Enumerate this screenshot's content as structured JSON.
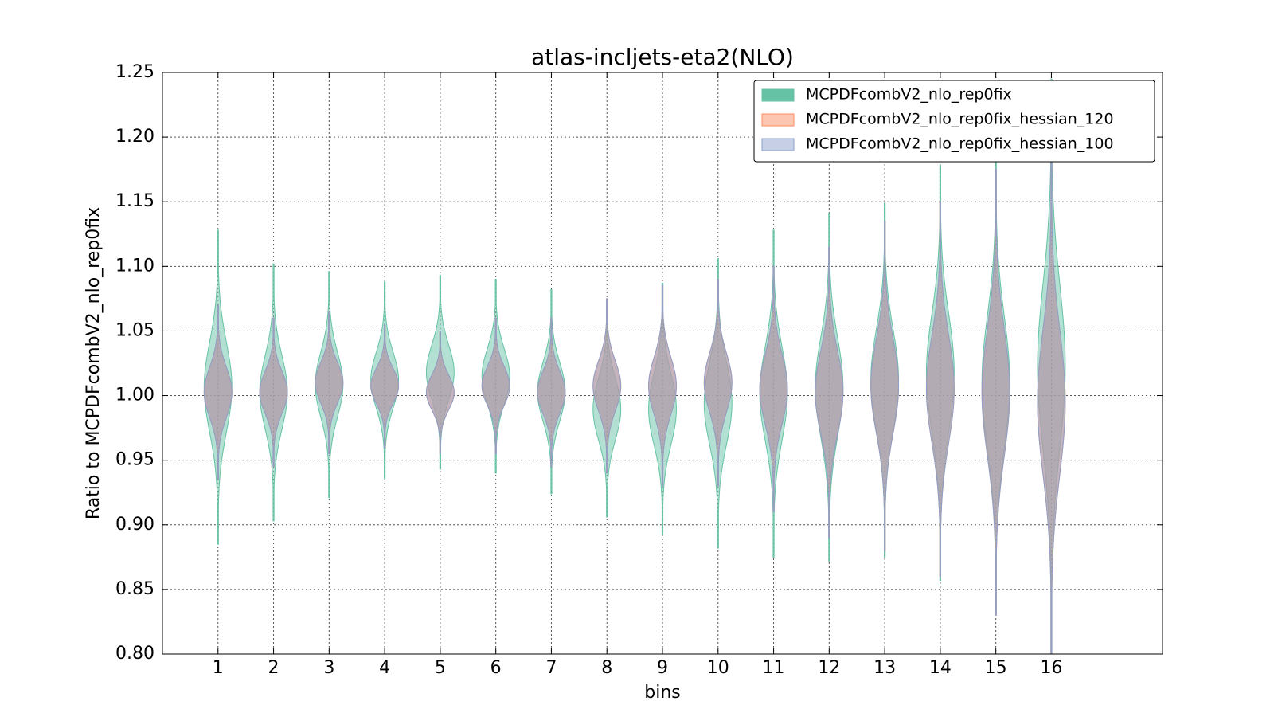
{
  "chart_data": {
    "type": "violin",
    "title": "atlas-incljets-eta2(NLO)",
    "x_label": "bins",
    "y_label": "Ratio to MCPDFcombV2_nlo_rep0fix",
    "categories": [
      "1",
      "2",
      "3",
      "4",
      "5",
      "6",
      "7",
      "8",
      "9",
      "10",
      "11",
      "12",
      "13",
      "14",
      "15",
      "16"
    ],
    "xlim": [
      0,
      18
    ],
    "ylim": [
      0.8,
      1.25
    ],
    "yticks": [
      {
        "value": 0.8,
        "label": "0.80"
      },
      {
        "value": 0.85,
        "label": "0.85"
      },
      {
        "value": 0.9,
        "label": "0.90"
      },
      {
        "value": 0.95,
        "label": "0.95"
      },
      {
        "value": 1.0,
        "label": "1.00"
      },
      {
        "value": 1.05,
        "label": "1.05"
      },
      {
        "value": 1.1,
        "label": "1.10"
      },
      {
        "value": 1.15,
        "label": "1.15"
      },
      {
        "value": 1.2,
        "label": "1.20"
      },
      {
        "value": 1.25,
        "label": "1.25"
      }
    ],
    "grid": true,
    "legend": "upper right",
    "series": [
      {
        "name": "MCPDFcombV2_nlo_rep0fix",
        "color": "#66c2a5",
        "min": [
          0.885,
          0.903,
          0.921,
          0.936,
          0.943,
          0.94,
          0.924,
          0.906,
          0.892,
          0.882,
          0.875,
          0.872,
          0.875,
          0.857,
          0.831,
          0.8
        ],
        "max": [
          1.128,
          1.102,
          1.096,
          1.088,
          1.093,
          1.09,
          1.082,
          1.073,
          1.087,
          1.106,
          1.128,
          1.141,
          1.149,
          1.178,
          1.19,
          1.245
        ]
      },
      {
        "name": "MCPDFcombV2_nlo_rep0fix_hessian_120",
        "color": "#fc8d62",
        "min": [
          0.935,
          0.945,
          0.955,
          0.96,
          0.955,
          0.955,
          0.945,
          0.94,
          0.93,
          0.93,
          0.91,
          0.89,
          0.88,
          0.86,
          0.83,
          0.8
        ],
        "max": [
          1.07,
          1.06,
          1.065,
          1.055,
          1.05,
          1.06,
          1.06,
          1.075,
          1.085,
          1.09,
          1.1,
          1.115,
          1.135,
          1.15,
          1.175,
          1.19
        ]
      },
      {
        "name": "MCPDFcombV2_nlo_rep0fix_hessian_100",
        "color": "#8da0cb",
        "min": [
          0.935,
          0.945,
          0.955,
          0.96,
          0.955,
          0.955,
          0.945,
          0.94,
          0.93,
          0.93,
          0.91,
          0.89,
          0.88,
          0.86,
          0.83,
          0.8
        ],
        "max": [
          1.07,
          1.06,
          1.065,
          1.055,
          1.05,
          1.06,
          1.06,
          1.075,
          1.085,
          1.09,
          1.1,
          1.115,
          1.135,
          1.15,
          1.175,
          1.19
        ]
      }
    ]
  }
}
